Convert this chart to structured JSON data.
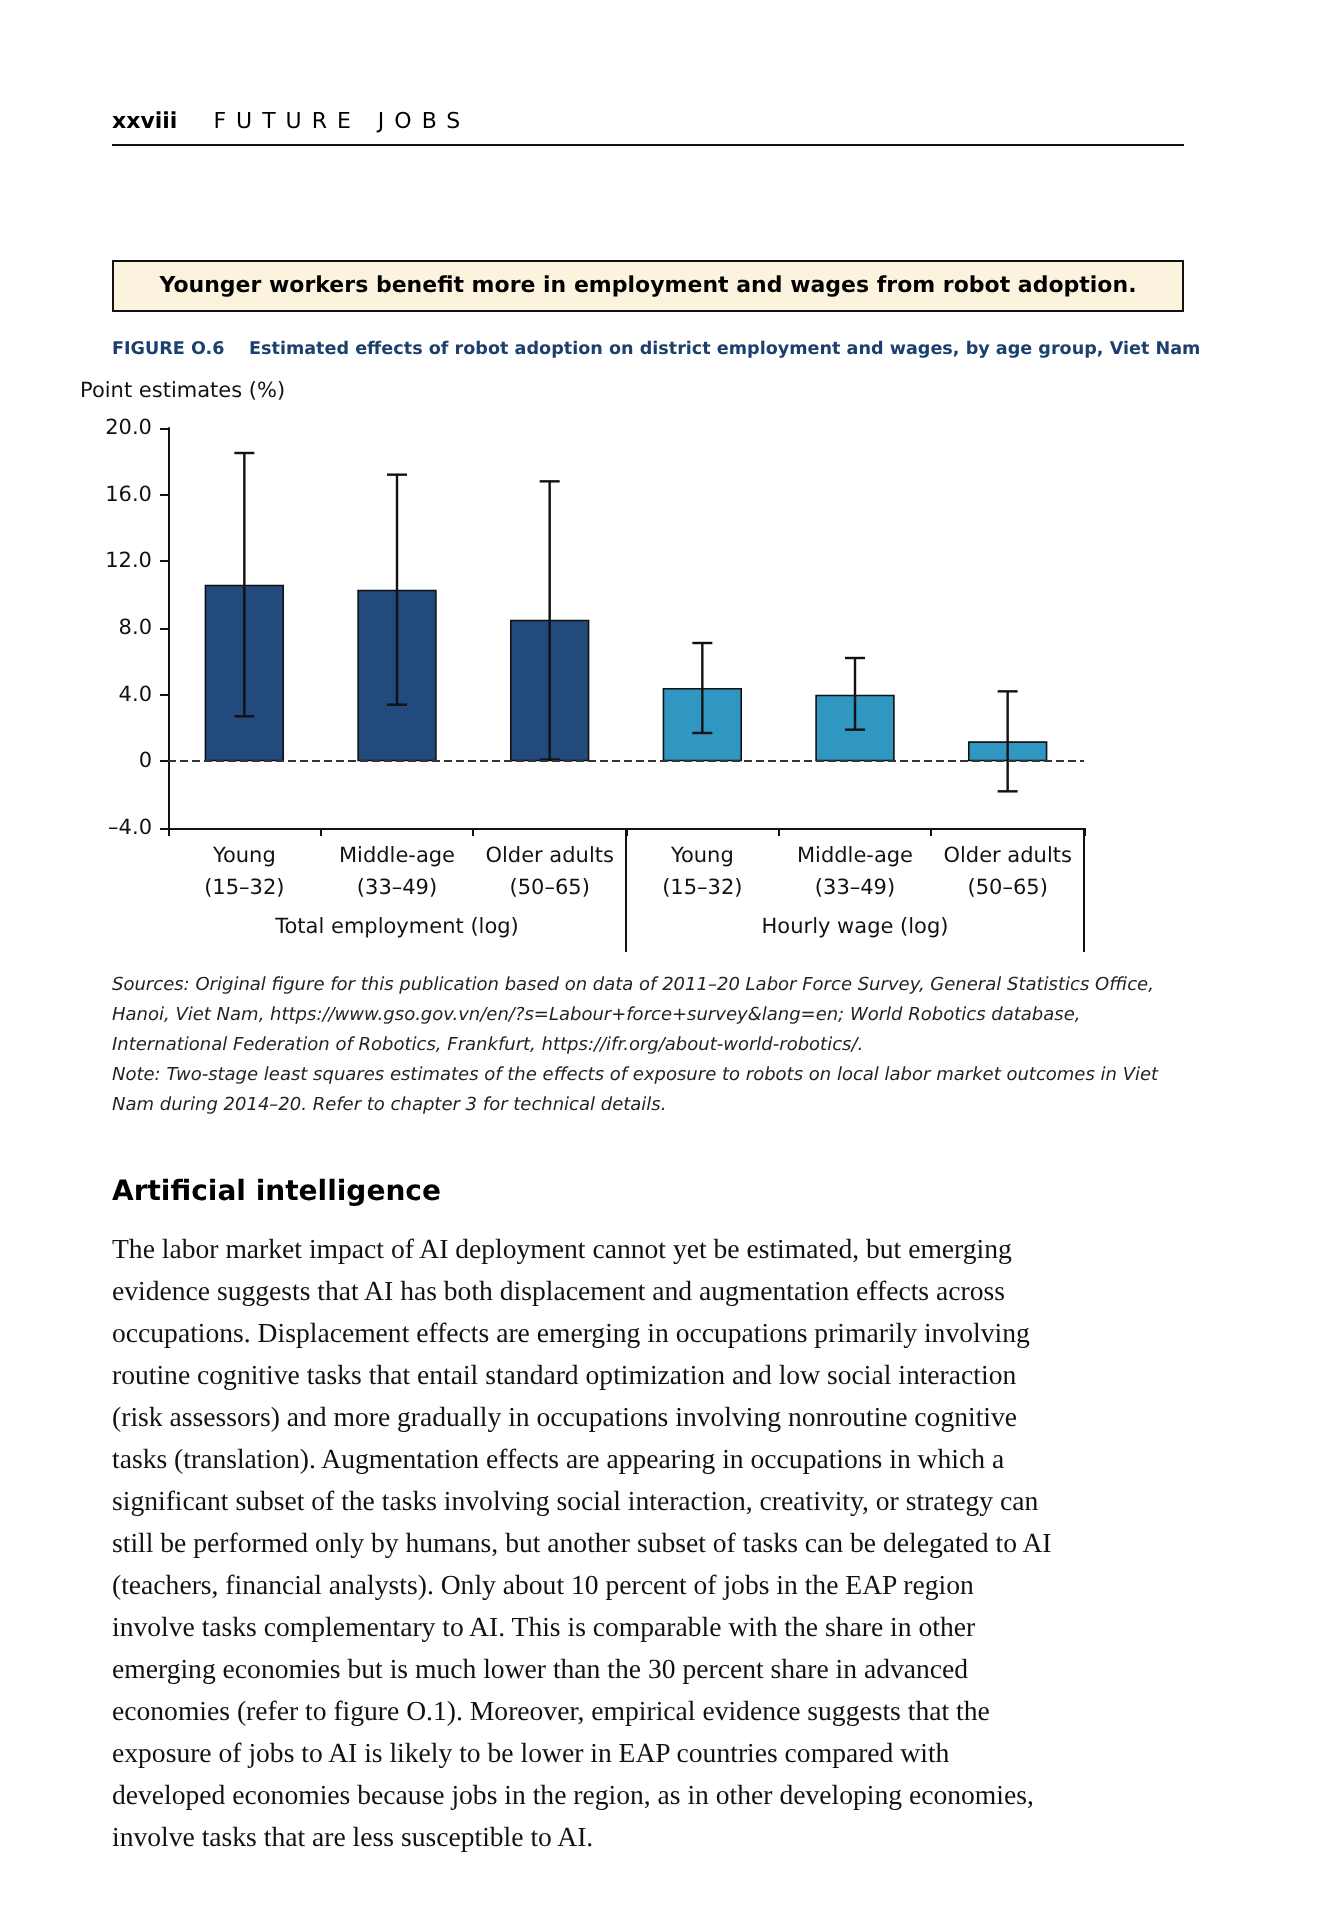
{
  "chart_data": {
    "type": "bar",
    "title": "Younger workers benefit more in employment and wages from robot adoption.",
    "subtitle": "FIGURE O.6    Estimated effects of robot adoption on district employment and wages, by age group, Viet Nam",
    "ylabel": "Point estimates (%)",
    "categories": [
      "Young\n(15–32)",
      "Middle-age\n(33–49)",
      "Older adults\n(50–65)",
      "Young\n(15–32)",
      "Middle-age\n(33–49)",
      "Older adults\n(50–65)"
    ],
    "values": [
      10.6,
      10.3,
      8.5,
      4.4,
      4.0,
      1.2
    ],
    "colors": [
      "#234a7c",
      "#234a7c",
      "#234a7c",
      "#2f97c1",
      "#2f97c1",
      "#2f97c1"
    ],
    "errors": [
      [
        2.7,
        18.5
      ],
      [
        3.4,
        17.2
      ],
      [
        0.1,
        16.8
      ],
      [
        1.7,
        7.1
      ],
      [
        1.9,
        6.2
      ],
      [
        -1.8,
        4.2
      ]
    ],
    "ylim": [
      -4,
      20
    ],
    "yticks": [
      {
        "value": -4,
        "label": "–4.0"
      },
      0,
      {
        "value": 4,
        "label": "4.0"
      },
      {
        "value": 8,
        "label": "8.0"
      },
      {
        "value": 12,
        "label": "12.0"
      },
      {
        "value": 16,
        "label": "16.0"
      },
      {
        "value": 20,
        "label": "20.0"
      }
    ],
    "ref_lines": [
      {
        "axis": "y",
        "value": 0,
        "line_style": "dashed",
        "color": "#333333"
      }
    ],
    "grid": false,
    "annotations": [
      "xxviii",
      "FUTURE JOBS",
      "Total employment (log)",
      "Hourly wage (log)",
      "Sources: Original figure for this publication based on data of 2011–20 Labor Force Survey, General Statistics Office, Hanoi, Viet Nam, https://www.gso.gov.vn/en/?s=Labour+force+survey&lang=en; World Robotics database, International Federation of Robotics, Frankfurt, https://ifr.org/about-world-robotics/.",
      "Note: Two-stage least squares estimates of the effects of exposure to robots on local labor market outcomes in Viet Nam during 2014–20. Refer to chapter 3 for technical details.",
      "Artificial intelligence",
      "The labor market impact of AI deployment cannot yet be estimated, but emerging evidence suggests that AI has both displacement and augmentation effects across occupations. Displacement effects are emerging in occupations primarily involving routine cognitive tasks that entail standard optimization and low social interaction (risk assessors) and more gradually in occupations involving nonroutine cognitive tasks (translation). Augmentation effects are appearing in occupations in which a significant subset of the tasks involving social interaction, creativity, or strategy can still be performed only by humans, but another subset of tasks can be delegated to AI (teachers, financial analysts). Only about 10 percent of jobs in the EAP region involve tasks complementary to AI. This is comparable with the share in other emerging economies but is much lower than the 30 percent share in advanced economies (refer to figure O.1). Moreover, empirical evidence suggests that the exposure of jobs to AI is likely to be lower in EAP countries compared with developed economies because jobs in the region, as in other developing economies, involve tasks that are less susceptible to AI."
    ]
  }
}
